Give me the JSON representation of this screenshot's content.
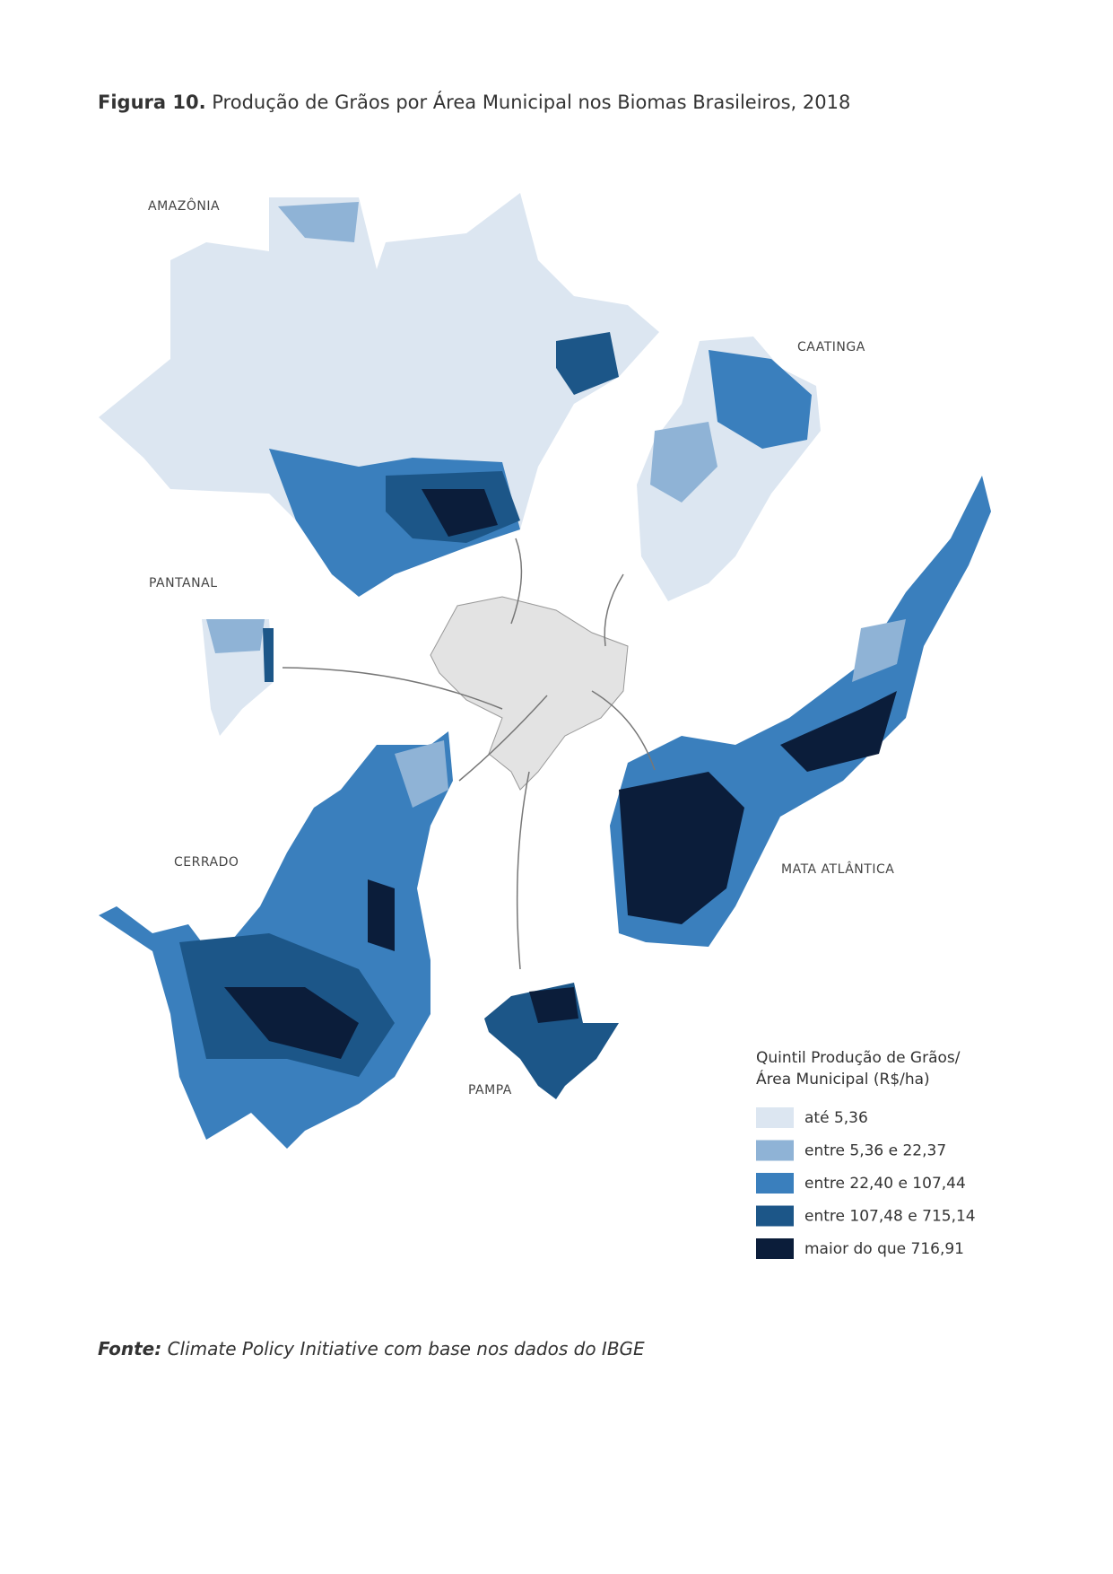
{
  "header": {
    "figure_number": "Figura 10.",
    "title": "Produção de Grãos por Área Municipal nos Biomas Brasileiros, 2018"
  },
  "biomes": [
    "AMAZÔNIA",
    "CAATINGA",
    "PANTANAL",
    "CERRADO",
    "MATA ATLÂNTICA",
    "PAMPA"
  ],
  "legend": {
    "title_line1": "Quintil Produção de Grãos/",
    "title_line2": "Área Municipal  (R$/ha)",
    "items": [
      {
        "label": "até 5,36",
        "color": "#dce6f1"
      },
      {
        "label": "entre  5,36 e 22,37",
        "color": "#8fb3d6"
      },
      {
        "label": "entre  22,40 e 107,44",
        "color": "#3a7fbd"
      },
      {
        "label": "entre 107,48 e 715,14",
        "color": "#1c5688"
      },
      {
        "label": "maior do que 716,91",
        "color": "#0b1d3a"
      }
    ]
  },
  "source": {
    "prefix": "Fonte:",
    "text": "Climate Policy Initiative com base nos dados do IBGE"
  }
}
